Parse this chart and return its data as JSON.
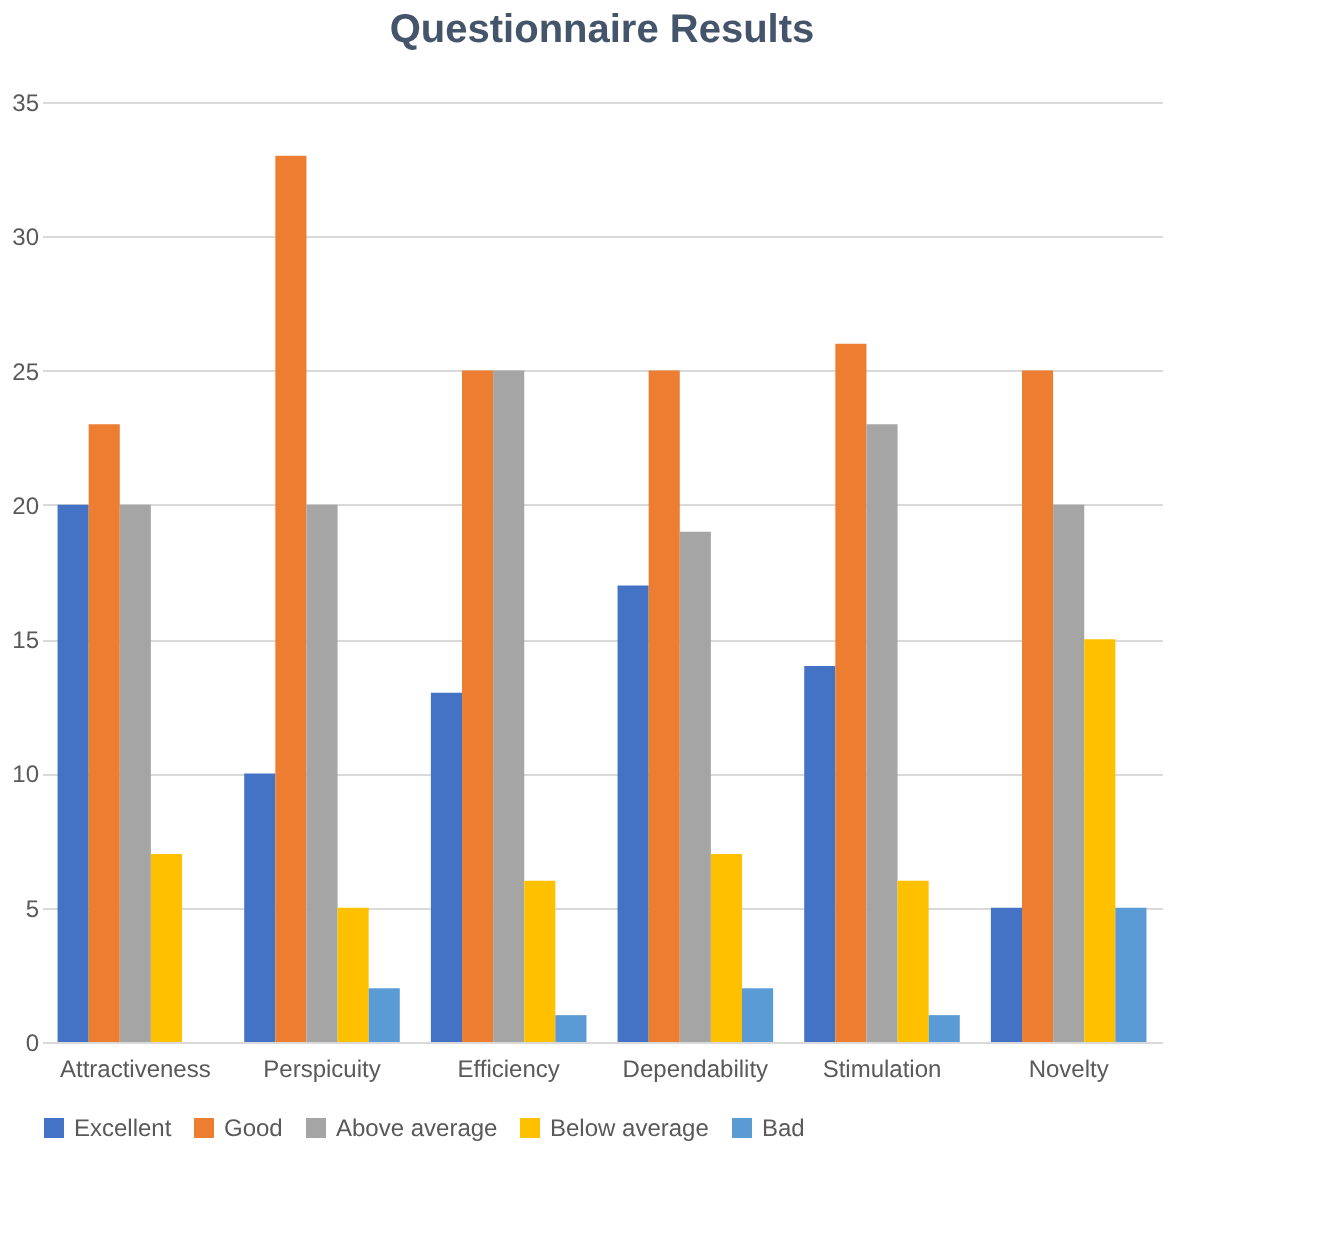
{
  "chart_data": {
    "type": "bar",
    "title": "Questionnaire Results",
    "categories": [
      "Attractiveness",
      "Perspicuity",
      "Efficiency",
      "Dependability",
      "Stimulation",
      "Novelty"
    ],
    "series": [
      {
        "name": "Excellent",
        "color": "#4472c4",
        "values": [
          20,
          10,
          13,
          17,
          14,
          5
        ]
      },
      {
        "name": "Good",
        "color": "#ed7d31",
        "values": [
          23,
          33,
          25,
          25,
          26,
          25
        ]
      },
      {
        "name": "Above average",
        "color": "#a5a5a5",
        "values": [
          20,
          20,
          25,
          19,
          23,
          20
        ]
      },
      {
        "name": "Below average",
        "color": "#ffc000",
        "values": [
          7,
          5,
          6,
          7,
          6,
          15
        ]
      },
      {
        "name": "Bad",
        "color": "#5b9bd5",
        "values": [
          0,
          2,
          1,
          2,
          1,
          5
        ]
      }
    ],
    "ylim": [
      0,
      35
    ],
    "yticks": [
      0,
      5,
      10,
      15,
      20,
      25,
      30,
      35
    ],
    "grid": "y",
    "legend": "bottom"
  }
}
